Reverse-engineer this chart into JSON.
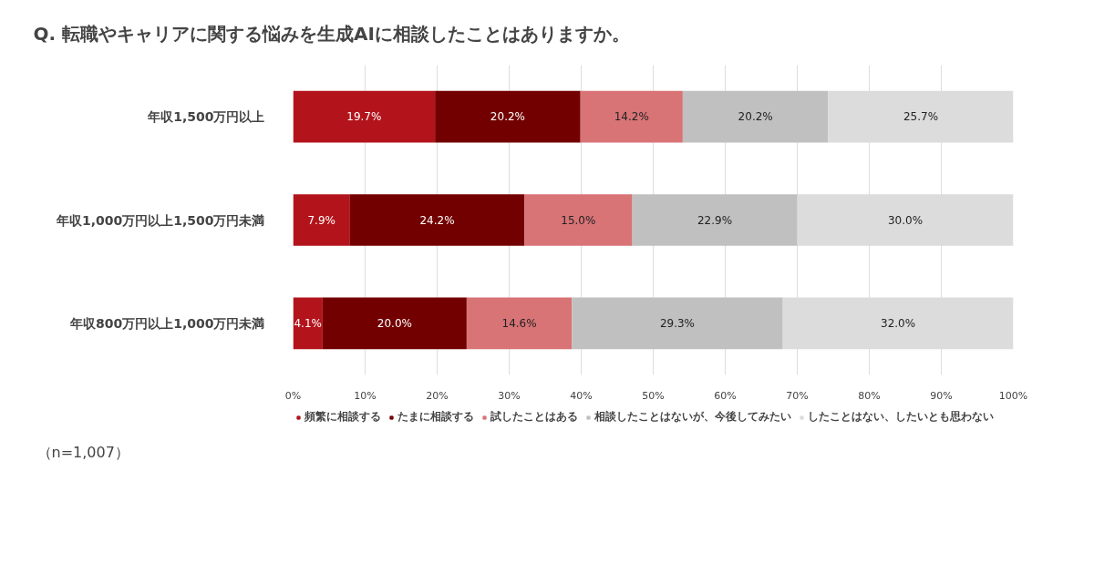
{
  "chart_data": {
    "type": "bar",
    "orientation": "horizontal",
    "stacked": true,
    "title": "Q. 転職やキャリアに関する悩みを生成AIに相談したことはありますか。",
    "categories": [
      "年収1,500万円以上",
      "年収1,000万円以上1,500万円未満",
      "年収800万円以上1,000万円未満"
    ],
    "series": [
      {
        "name": "頻繁に相談する",
        "color": "#b3141c",
        "values": [
          19.7,
          7.9,
          4.1
        ],
        "value_labels": [
          "19.7%",
          "7.9%",
          "4.1%"
        ]
      },
      {
        "name": "たまに相談する",
        "color": "#730000",
        "values": [
          20.2,
          24.2,
          20.0
        ],
        "value_labels": [
          "20.2%",
          "24.2%",
          "20.0%"
        ]
      },
      {
        "name": "試したことはある",
        "color": "#d87376",
        "values": [
          14.2,
          15.0,
          14.6
        ],
        "value_labels": [
          "14.2%",
          "15.0%",
          "14.6%"
        ]
      },
      {
        "name": "相談したことはないが、今後してみたい",
        "color": "#c0c0c0",
        "values": [
          20.2,
          22.9,
          29.3
        ],
        "value_labels": [
          "20.2%",
          "22.9%",
          "29.3%"
        ]
      },
      {
        "name": "したことはない、したいとも思わない",
        "color": "#dcdcdd",
        "values": [
          25.7,
          30.0,
          32.0
        ],
        "value_labels": [
          "25.7%",
          "30.0%",
          "32.0%"
        ]
      }
    ],
    "xlim": [
      0,
      100
    ],
    "xticks": [
      {
        "value": 0,
        "label": "0%"
      },
      {
        "value": 10,
        "label": "10%"
      },
      {
        "value": 20,
        "label": "20%"
      },
      {
        "value": 30,
        "label": "30%"
      },
      {
        "value": 40,
        "label": "40%"
      },
      {
        "value": 50,
        "label": "50%"
      },
      {
        "value": 60,
        "label": "60%"
      },
      {
        "value": 70,
        "label": "70%"
      },
      {
        "value": 80,
        "label": "80%"
      },
      {
        "value": 90,
        "label": "90%"
      },
      {
        "value": 100,
        "label": "100%"
      }
    ],
    "grid": "x",
    "legend": "bottom",
    "annotations": [
      "（n=1,007）"
    ]
  }
}
